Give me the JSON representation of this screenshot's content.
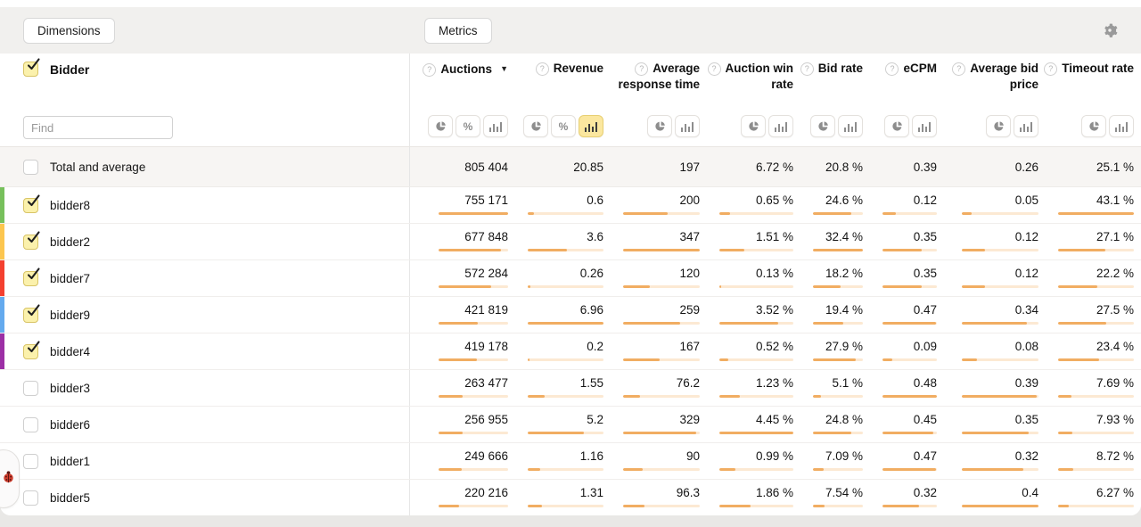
{
  "toolbar": {
    "dimensions_label": "Dimensions",
    "metrics_label": "Metrics"
  },
  "panel": {
    "dimension_title": "Bidder",
    "dimension_checked": true,
    "find_placeholder": "Find"
  },
  "colors": {
    "bar_fill": "#f1ad62",
    "bar_track": "#fce9d3",
    "toggle_active_bg": "#fbe79f"
  },
  "columns": [
    {
      "label": "Auctions",
      "help_icon": true,
      "sorted": "desc",
      "toggles": [
        "pie",
        "percent",
        "bars"
      ],
      "active_toggle": null
    },
    {
      "label": "Revenue",
      "help_icon": true,
      "sorted": null,
      "toggles": [
        "pie",
        "percent",
        "bars"
      ],
      "active_toggle": "bars"
    },
    {
      "label": "Average response time",
      "help_icon": true,
      "sorted": null,
      "toggles": [
        "pie",
        "bars"
      ],
      "active_toggle": null
    },
    {
      "label": "Auction win rate",
      "help_icon": true,
      "sorted": null,
      "toggles": [
        "pie",
        "bars"
      ],
      "active_toggle": null
    },
    {
      "label": "Bid rate",
      "help_icon": true,
      "sorted": null,
      "toggles": [
        "pie",
        "bars"
      ],
      "active_toggle": null
    },
    {
      "label": "eCPM",
      "help_icon": true,
      "sorted": null,
      "toggles": [
        "pie",
        "bars"
      ],
      "active_toggle": null
    },
    {
      "label": "Average bid price",
      "help_icon": true,
      "sorted": null,
      "toggles": [
        "pie",
        "bars"
      ],
      "active_toggle": null
    },
    {
      "label": "Timeout rate",
      "help_icon": true,
      "sorted": null,
      "toggles": [
        "pie",
        "bars"
      ],
      "active_toggle": null
    }
  ],
  "total_row": {
    "label": "Total and average",
    "checked": false,
    "values": [
      "805 404",
      "20.85",
      "197",
      "6.72 %",
      "20.8 %",
      "0.39",
      "0.26",
      "25.1 %"
    ]
  },
  "rows": [
    {
      "label": "bidder8",
      "checked": true,
      "strip_color": "#77c05c",
      "values": [
        "755 171",
        "0.6",
        "200",
        "0.65 %",
        "24.6 %",
        "0.12",
        "0.05",
        "43.1 %"
      ],
      "numeric": [
        755171,
        0.6,
        200,
        0.65,
        24.6,
        0.12,
        0.05,
        43.1
      ]
    },
    {
      "label": "bidder2",
      "checked": true,
      "strip_color": "#fcc64f",
      "values": [
        "677 848",
        "3.6",
        "347",
        "1.51 %",
        "32.4 %",
        "0.35",
        "0.12",
        "27.1 %"
      ],
      "numeric": [
        677848,
        3.6,
        347,
        1.51,
        32.4,
        0.35,
        0.12,
        27.1
      ]
    },
    {
      "label": "bidder7",
      "checked": true,
      "strip_color": "#f4402f",
      "values": [
        "572 284",
        "0.26",
        "120",
        "0.13 %",
        "18.2 %",
        "0.35",
        "0.12",
        "22.2 %"
      ],
      "numeric": [
        572284,
        0.26,
        120,
        0.13,
        18.2,
        0.35,
        0.12,
        22.2
      ]
    },
    {
      "label": "bidder9",
      "checked": true,
      "strip_color": "#64aaee",
      "values": [
        "421 819",
        "6.96",
        "259",
        "3.52 %",
        "19.4 %",
        "0.47",
        "0.34",
        "27.5 %"
      ],
      "numeric": [
        421819,
        6.96,
        259,
        3.52,
        19.4,
        0.47,
        0.34,
        27.5
      ]
    },
    {
      "label": "bidder4",
      "checked": true,
      "strip_color": "#9c2fa5",
      "values": [
        "419 178",
        "0.2",
        "167",
        "0.52 %",
        "27.9 %",
        "0.09",
        "0.08",
        "23.4 %"
      ],
      "numeric": [
        419178,
        0.2,
        167,
        0.52,
        27.9,
        0.09,
        0.08,
        23.4
      ]
    },
    {
      "label": "bidder3",
      "checked": false,
      "strip_color": null,
      "values": [
        "263 477",
        "1.55",
        "76.2",
        "1.23 %",
        "5.1 %",
        "0.48",
        "0.39",
        "7.69 %"
      ],
      "numeric": [
        263477,
        1.55,
        76.2,
        1.23,
        5.1,
        0.48,
        0.39,
        7.69
      ]
    },
    {
      "label": "bidder6",
      "checked": false,
      "strip_color": null,
      "values": [
        "256 955",
        "5.2",
        "329",
        "4.45 %",
        "24.8 %",
        "0.45",
        "0.35",
        "7.93 %"
      ],
      "numeric": [
        256955,
        5.2,
        329,
        4.45,
        24.8,
        0.45,
        0.35,
        7.93
      ]
    },
    {
      "label": "bidder1",
      "checked": false,
      "strip_color": null,
      "values": [
        "249 666",
        "1.16",
        "90",
        "0.99 %",
        "7.09 %",
        "0.47",
        "0.32",
        "8.72 %"
      ],
      "numeric": [
        249666,
        1.16,
        90,
        0.99,
        7.09,
        0.47,
        0.32,
        8.72
      ]
    },
    {
      "label": "bidder5",
      "checked": false,
      "strip_color": null,
      "values": [
        "220 216",
        "1.31",
        "96.3",
        "1.86 %",
        "7.54 %",
        "0.32",
        "0.4",
        "6.27 %"
      ],
      "numeric": [
        220216,
        1.31,
        96.3,
        1.86,
        7.54,
        0.32,
        0.4,
        6.27
      ]
    }
  ]
}
